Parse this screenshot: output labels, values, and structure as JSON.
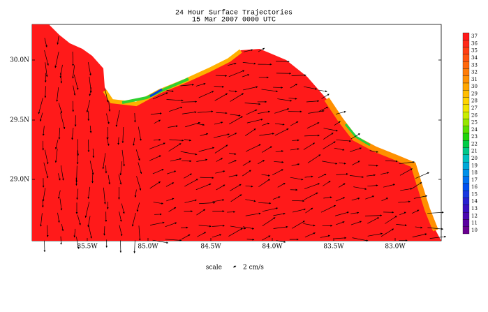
{
  "header": {
    "title": "24 Hour Surface Trajectories",
    "subtitle": "15 Mar 2007 0000 UTC"
  },
  "map": {
    "lon_labels": [
      "85.5W",
      "85.0W",
      "84.5W",
      "84.0W",
      "83.5W",
      "83.0W"
    ],
    "lat_labels": [
      "30.0N",
      "29.5N",
      "29.0N"
    ]
  },
  "colorbar": {
    "levels": [
      37,
      36,
      35,
      34,
      33,
      32,
      31,
      30,
      29,
      28,
      27,
      26,
      25,
      24,
      23,
      22,
      21,
      20,
      19,
      18,
      17,
      16,
      15,
      14,
      13,
      12,
      11,
      10
    ],
    "colors": [
      "#ff1a1a",
      "#ff2a1a",
      "#ff3f14",
      "#ff5410",
      "#ff680c",
      "#ff7c08",
      "#ff9104",
      "#ffa600",
      "#ffbd00",
      "#ffd400",
      "#f0e400",
      "#c8ec00",
      "#96e600",
      "#5ade00",
      "#20d40a",
      "#00cc46",
      "#00c88a",
      "#00c0c0",
      "#00a8d8",
      "#0090e8",
      "#0070f0",
      "#0050f0",
      "#1838e0",
      "#2820d0",
      "#3810c0",
      "#4a08b0",
      "#5a00a0",
      "#6a0090"
    ]
  },
  "scale": {
    "label": "scale",
    "unit": "2 cm/s"
  }
}
